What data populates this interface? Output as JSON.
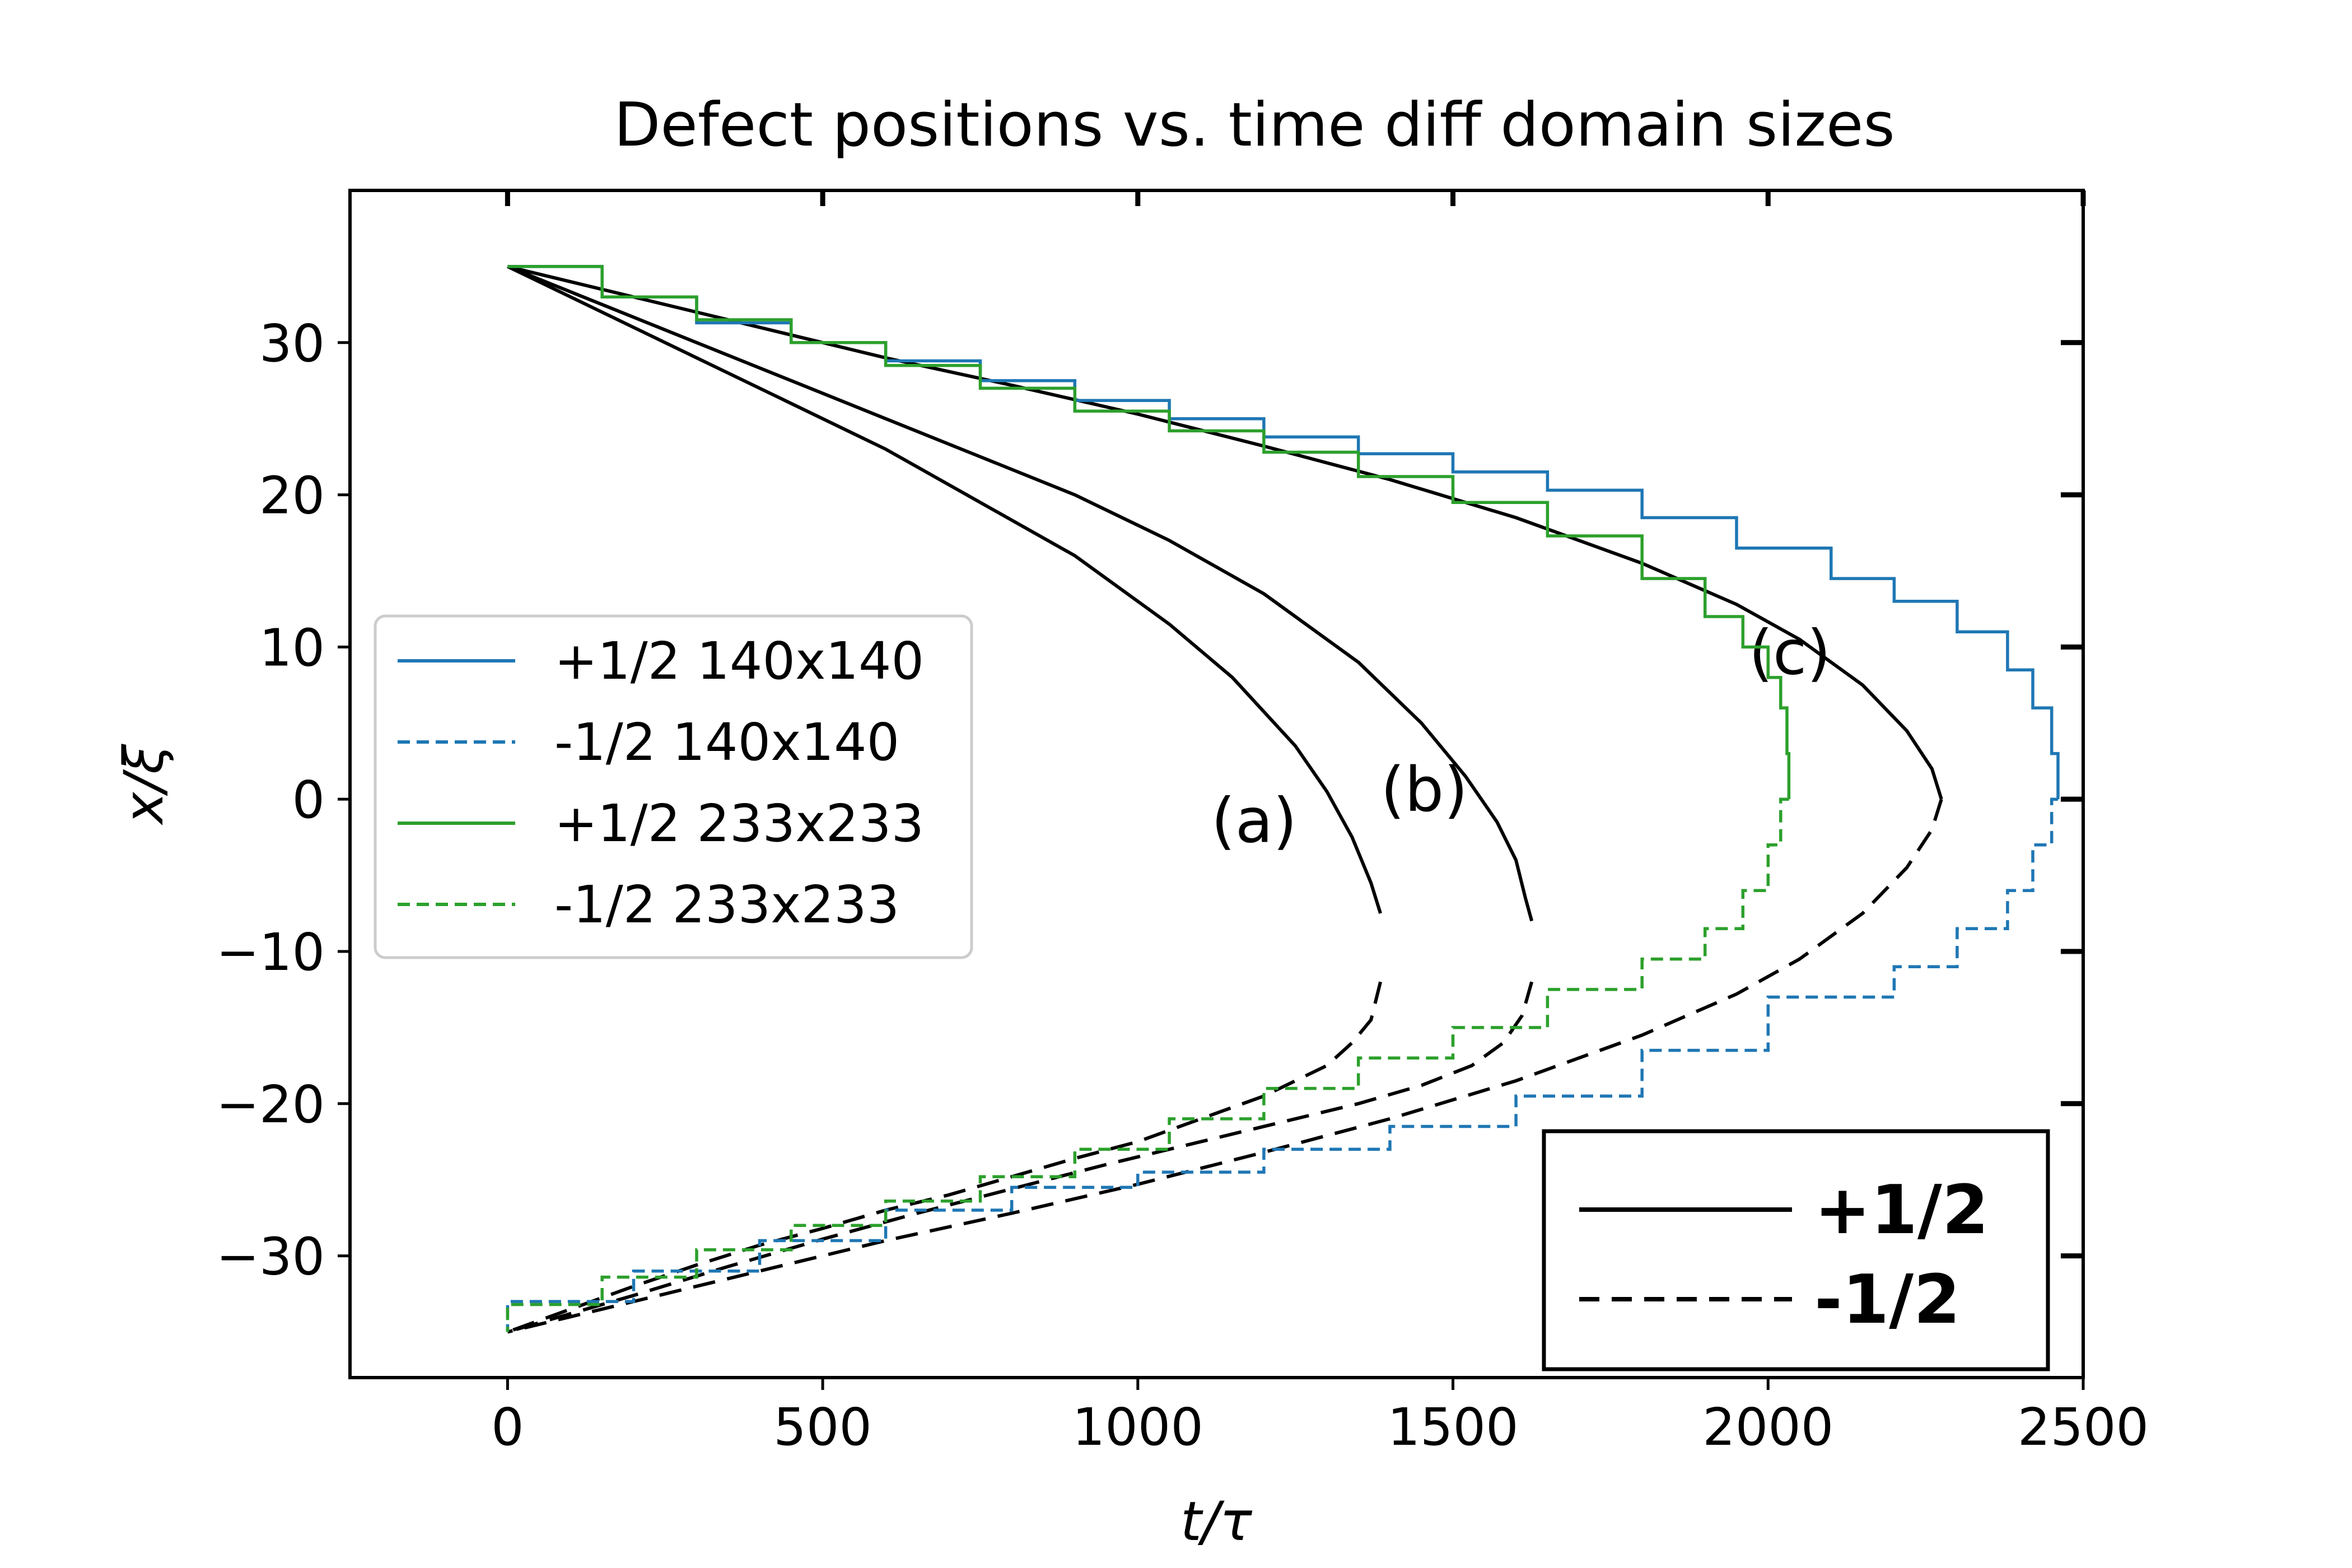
{
  "chart_data": {
    "type": "line",
    "title": "Defect positions vs. time diff domain sizes",
    "xlabel": "t/τ",
    "ylabel": "x/ξ",
    "xlim": [
      -250,
      2500
    ],
    "ylim": [
      -38,
      40
    ],
    "xticks": [
      0,
      500,
      1000,
      1500,
      2000,
      2500
    ],
    "yticks": [
      -30,
      -20,
      -10,
      0,
      10,
      20,
      30
    ],
    "xtick_labels": [
      "0",
      "500",
      "1000",
      "1500",
      "2000",
      "2500"
    ],
    "ytick_labels": [
      "−30",
      "−20",
      "−10",
      "0",
      "10",
      "20",
      "30"
    ],
    "grid": false,
    "legend_position": "center-left",
    "series": [
      {
        "name": "+1/2 140x140",
        "color": "#1f77b4",
        "style": "solid",
        "x": [
          0,
          150,
          300,
          450,
          600,
          750,
          900,
          1050,
          1200,
          1350,
          1500,
          1650,
          1800,
          1950,
          2100,
          2200,
          2300,
          2380,
          2420,
          2450,
          2460
        ],
        "y": [
          35,
          33,
          31.3,
          30,
          28.8,
          27.5,
          26.2,
          25,
          23.8,
          22.7,
          21.5,
          20.3,
          18.5,
          16.5,
          14.5,
          13,
          11,
          8.5,
          6,
          3,
          0
        ]
      },
      {
        "name": "-1/2 140x140",
        "color": "#1f77b4",
        "style": "dashed",
        "x": [
          2460,
          2450,
          2420,
          2380,
          2300,
          2200,
          2000,
          1800,
          1600,
          1400,
          1200,
          1000,
          800,
          600,
          400,
          200,
          0
        ],
        "y": [
          0,
          -3,
          -6,
          -8.5,
          -11,
          -13,
          -16.5,
          -19.5,
          -21.5,
          -23,
          -24.5,
          -25.5,
          -27,
          -29,
          -31,
          -33,
          -35
        ]
      },
      {
        "name": "+1/2 233x233",
        "color": "#2ca02c",
        "style": "solid",
        "x": [
          0,
          150,
          300,
          450,
          600,
          750,
          900,
          1050,
          1200,
          1350,
          1500,
          1650,
          1800,
          1900,
          1960,
          2000,
          2020,
          2030,
          2033
        ],
        "y": [
          35,
          33,
          31.5,
          30,
          28.5,
          27,
          25.5,
          24.2,
          22.8,
          21.2,
          19.5,
          17.3,
          14.5,
          12,
          10,
          8,
          6,
          3,
          0
        ]
      },
      {
        "name": "-1/2 233x233",
        "color": "#2ca02c",
        "style": "dashed",
        "x": [
          2033,
          2020,
          2000,
          1960,
          1900,
          1800,
          1650,
          1500,
          1350,
          1200,
          1050,
          900,
          750,
          600,
          450,
          300,
          150,
          0
        ],
        "y": [
          0,
          -3,
          -6,
          -8.5,
          -10.5,
          -12.5,
          -15,
          -17,
          -19,
          -21,
          -23,
          -24.8,
          -26.4,
          -28,
          -29.6,
          -31.4,
          -33.2,
          -35
        ]
      }
    ],
    "background_curves": {
      "color": "#000000",
      "legend": [
        {
          "label": "+1/2",
          "style": "solid"
        },
        {
          "label": "-1/2",
          "style": "dashed"
        }
      ],
      "curves": [
        {
          "label": "(a)",
          "style": "solid",
          "x": [
            0,
            150,
            300,
            450,
            600,
            750,
            900,
            1050,
            1150,
            1250,
            1300,
            1340,
            1370,
            1385
          ],
          "y": [
            35,
            32,
            29,
            26,
            23,
            19.5,
            16,
            11.5,
            8,
            3.5,
            0.5,
            -2.5,
            -5.5,
            -7.5
          ]
        },
        {
          "label": "",
          "style": "dashed",
          "x": [
            1385,
            1370,
            1340,
            1300,
            1200,
            1100,
            1000,
            900,
            800,
            700,
            600,
            500,
            400,
            300,
            200,
            100,
            0
          ],
          "y": [
            -12,
            -14.5,
            -16,
            -17.5,
            -19.5,
            -21,
            -22.5,
            -23.6,
            -24.8,
            -26,
            -27,
            -28.2,
            -29.3,
            -30.6,
            -32,
            -33.5,
            -35
          ]
        },
        {
          "label": "(b)",
          "style": "solid",
          "x": [
            0,
            150,
            300,
            450,
            600,
            750,
            900,
            1050,
            1200,
            1350,
            1450,
            1520,
            1570,
            1600,
            1615,
            1625
          ],
          "y": [
            35,
            32.5,
            30,
            27.5,
            25,
            22.5,
            20,
            17,
            13.5,
            9,
            5,
            1.5,
            -1.5,
            -4,
            -6.5,
            -8
          ]
        },
        {
          "label": "",
          "style": "dashed",
          "x": [
            1625,
            1610,
            1580,
            1530,
            1450,
            1350,
            1250,
            1100,
            950,
            800,
            650,
            500,
            350,
            200,
            100,
            0
          ],
          "y": [
            -12,
            -14.2,
            -16,
            -17.5,
            -18.8,
            -20,
            -21,
            -22.5,
            -24,
            -25.6,
            -27.2,
            -28.9,
            -30.7,
            -32.6,
            -33.8,
            -35
          ]
        },
        {
          "label": "(c)",
          "style": "solid",
          "x": [
            0,
            200,
            400,
            600,
            800,
            1000,
            1200,
            1400,
            1600,
            1800,
            1950,
            2050,
            2150,
            2220,
            2260,
            2275
          ],
          "y": [
            35,
            33,
            31,
            29,
            27.2,
            25.3,
            23.2,
            21,
            18.5,
            15.5,
            12.8,
            10.5,
            7.5,
            4.5,
            2,
            0
          ]
        },
        {
          "label": "",
          "style": "dashed",
          "x": [
            2275,
            2260,
            2220,
            2150,
            2050,
            1950,
            1800,
            1600,
            1400,
            1200,
            1000,
            800,
            600,
            400,
            200,
            0
          ],
          "y": [
            0,
            -2,
            -4.5,
            -7.5,
            -10.5,
            -12.8,
            -15.5,
            -18.5,
            -21,
            -23.2,
            -25.3,
            -27.2,
            -29,
            -31,
            -33,
            -35
          ]
        }
      ]
    }
  }
}
